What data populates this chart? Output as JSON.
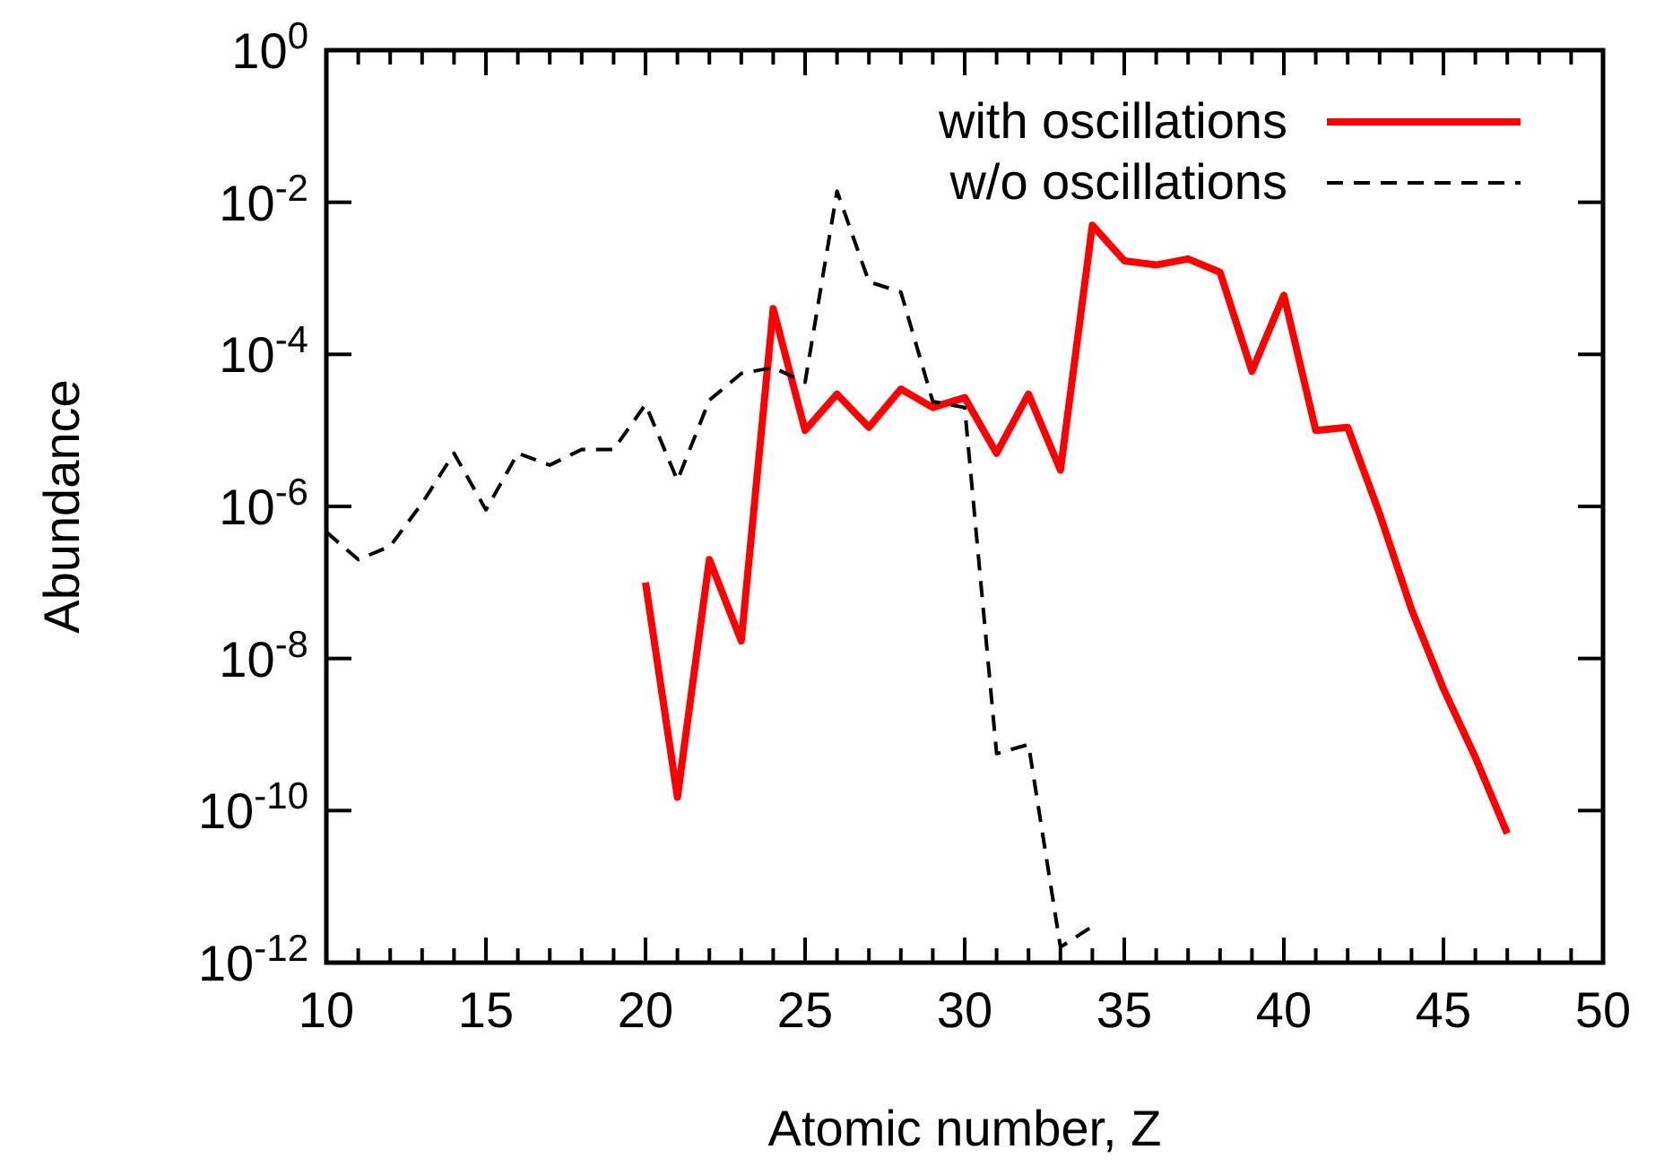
{
  "chart_data": {
    "type": "line",
    "xlabel": "Atomic number, Z",
    "ylabel": "Abundance",
    "log": "y",
    "legend": "top right",
    "grid": false,
    "xlim": [
      10,
      50
    ],
    "xticks": [
      10,
      {
        "value": 11,
        "label": null
      },
      {
        "value": 12,
        "label": null
      },
      {
        "value": 13,
        "label": null
      },
      {
        "value": 14,
        "label": null
      },
      15,
      {
        "value": 16,
        "label": null
      },
      {
        "value": 17,
        "label": null
      },
      {
        "value": 18,
        "label": null
      },
      {
        "value": 19,
        "label": null
      },
      20,
      {
        "value": 21,
        "label": null
      },
      {
        "value": 22,
        "label": null
      },
      {
        "value": 23,
        "label": null
      },
      {
        "value": 24,
        "label": null
      },
      25,
      {
        "value": 26,
        "label": null
      },
      {
        "value": 27,
        "label": null
      },
      {
        "value": 28,
        "label": null
      },
      {
        "value": 29,
        "label": null
      },
      30,
      {
        "value": 31,
        "label": null
      },
      {
        "value": 32,
        "label": null
      },
      {
        "value": 33,
        "label": null
      },
      {
        "value": 34,
        "label": null
      },
      35,
      {
        "value": 36,
        "label": null
      },
      {
        "value": 37,
        "label": null
      },
      {
        "value": 38,
        "label": null
      },
      {
        "value": 39,
        "label": null
      },
      40,
      {
        "value": 41,
        "label": null
      },
      {
        "value": 42,
        "label": null
      },
      {
        "value": 43,
        "label": null
      },
      {
        "value": 44,
        "label": null
      },
      45,
      {
        "value": 46,
        "label": null
      },
      {
        "value": 47,
        "label": null
      },
      {
        "value": 48,
        "label": null
      },
      {
        "value": 49,
        "label": null
      },
      50
    ],
    "ylim": [
      1e-12,
      1
    ],
    "yticks": [
      {
        "value": 1e-12,
        "label": "10$^{-12}$"
      },
      {
        "value": 1e-10,
        "label": "10$^{-10}$"
      },
      {
        "value": 1e-08,
        "label": "10$^{-8}$"
      },
      {
        "value": 1e-06,
        "label": "10$^{-6}$"
      },
      {
        "value": 0.0001,
        "label": "10$^{-4}$"
      },
      {
        "value": 0.01,
        "label": "10$^{-2}$"
      },
      {
        "value": 1,
        "label": "10$^{0}$"
      }
    ],
    "series": [
      {
        "name": "with oscillations",
        "color": "#ff0000",
        "line_style": "solid",
        "x": [
          20,
          21,
          22,
          23,
          24,
          25,
          26,
          27,
          28,
          29,
          30,
          31,
          32,
          33,
          34,
          35,
          36,
          37,
          38,
          39,
          40,
          41,
          42,
          43,
          44,
          45,
          46,
          47
        ],
        "values": [
          1e-07,
          1.5e-10,
          2e-07,
          1.7e-08,
          0.0004,
          1e-05,
          3e-05,
          1.1e-05,
          3.5e-05,
          2e-05,
          2.7e-05,
          5e-06,
          3e-05,
          3e-06,
          0.005,
          0.0017,
          0.0015,
          0.0018,
          0.0012,
          6e-05,
          0.0006,
          1e-05,
          1.1e-05,
          8e-07,
          4.4e-08,
          4e-09,
          5e-10,
          5e-11
        ]
      },
      {
        "name": "w/o oscillations",
        "color": "#000000",
        "line_style": "dashed",
        "x": [
          10,
          11,
          12,
          13,
          14,
          15,
          16,
          17,
          18,
          19,
          20,
          21,
          22,
          23,
          24,
          25,
          26,
          27,
          28,
          29,
          30,
          31,
          32,
          33,
          34
        ],
        "values": [
          4.6e-07,
          2e-07,
          3e-07,
          1.1e-06,
          5e-06,
          9e-07,
          5e-06,
          3.5e-06,
          5.6e-06,
          5.6e-06,
          2.2e-05,
          2.2e-06,
          2.5e-05,
          5.6e-05,
          6.7e-05,
          4.3e-05,
          0.014,
          0.0009,
          0.00066,
          2.4e-05,
          2e-05,
          5.6e-10,
          7.4e-10,
          1.6e-12,
          3e-12
        ]
      }
    ]
  }
}
